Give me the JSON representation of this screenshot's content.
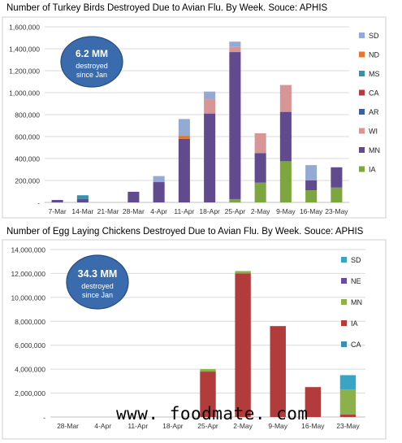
{
  "chart_data": [
    {
      "type": "bar",
      "stacked": true,
      "title": "Number of Turkey Birds Destroyed Due to Avian Flu.  By Week.  Souce: APHIS",
      "callout": [
        "6.2 MM",
        "destroyed",
        "since Jan"
      ],
      "categories": [
        "7-Mar",
        "14-Mar",
        "21-Mar",
        "28-Mar",
        "4-Apr",
        "11-Apr",
        "18-Apr",
        "25-Apr",
        "2-May",
        "9-May",
        "16-May",
        "23-May"
      ],
      "ylim": [
        0,
        1600000
      ],
      "yticks": [
        0,
        200000,
        400000,
        600000,
        800000,
        1000000,
        1200000,
        1400000,
        1600000
      ],
      "ytick_labels": [
        "-",
        "200,000",
        "400,000",
        "600,000",
        "800,000",
        "1,000,000",
        "1,200,000",
        "1,400,000",
        "1,600,000"
      ],
      "grid": true,
      "legend_position": "right",
      "series": [
        {
          "name": "IA",
          "color": "#7ea63f",
          "values": [
            0,
            0,
            0,
            0,
            0,
            0,
            0,
            30000,
            180000,
            375000,
            110000,
            135000
          ]
        },
        {
          "name": "MN",
          "color": "#614b8e",
          "values": [
            22000,
            30000,
            0,
            97000,
            185000,
            580000,
            810000,
            1340000,
            270000,
            450000,
            90000,
            185000
          ]
        },
        {
          "name": "WI",
          "color": "#d89595",
          "values": [
            0,
            0,
            0,
            0,
            0,
            0,
            130000,
            50000,
            180000,
            245000,
            0,
            0
          ]
        },
        {
          "name": "AR",
          "color": "#3a5f9c",
          "values": [
            0,
            0,
            0,
            0,
            0,
            0,
            0,
            0,
            0,
            0,
            0,
            0
          ]
        },
        {
          "name": "CA",
          "color": "#b23b3b",
          "values": [
            0,
            0,
            0,
            0,
            0,
            0,
            0,
            0,
            0,
            0,
            0,
            0
          ]
        },
        {
          "name": "MS",
          "color": "#3b8fb1",
          "values": [
            0,
            35000,
            0,
            0,
            0,
            0,
            0,
            0,
            0,
            0,
            0,
            0
          ]
        },
        {
          "name": "ND",
          "color": "#e8772e",
          "values": [
            0,
            0,
            0,
            0,
            0,
            30000,
            0,
            0,
            0,
            0,
            0,
            0
          ]
        },
        {
          "name": "SD",
          "color": "#93abd4",
          "values": [
            0,
            0,
            0,
            0,
            55000,
            150000,
            70000,
            45000,
            0,
            0,
            140000,
            0
          ]
        }
      ]
    },
    {
      "type": "bar",
      "stacked": true,
      "title": "Number of Egg Laying Chickens Destroyed Due to Avian Flu.  By Week.  Souce: APHIS",
      "callout": [
        "34.3 MM",
        "destroyed",
        "since Jan"
      ],
      "categories": [
        "28-Mar",
        "4-Apr",
        "11-Apr",
        "18-Apr",
        "25-Apr",
        "2-May",
        "9-May",
        "16-May",
        "23-May"
      ],
      "ylim": [
        0,
        14000000
      ],
      "yticks": [
        0,
        2000000,
        4000000,
        6000000,
        8000000,
        10000000,
        12000000,
        14000000
      ],
      "ytick_labels": [
        "-",
        "2,000,000",
        "4,000,000",
        "6,000,000",
        "8,000,000",
        "10,000,000",
        "12,000,000",
        "14,000,000"
      ],
      "grid": true,
      "legend_position": "right",
      "series": [
        {
          "name": "CA",
          "color": "#3b8fb1",
          "values": [
            0,
            0,
            0,
            0,
            0,
            0,
            0,
            0,
            0
          ]
        },
        {
          "name": "IA",
          "color": "#b23b3b",
          "values": [
            0,
            0,
            0,
            0,
            3800000,
            12000000,
            7600000,
            2500000,
            200000
          ]
        },
        {
          "name": "MN",
          "color": "#8db14a",
          "values": [
            0,
            0,
            0,
            0,
            200000,
            200000,
            0,
            0,
            2100000
          ]
        },
        {
          "name": "NE",
          "color": "#6b4c99",
          "values": [
            0,
            0,
            0,
            0,
            0,
            0,
            0,
            0,
            0
          ]
        },
        {
          "name": "SD",
          "color": "#39a4c6",
          "values": [
            0,
            0,
            0,
            0,
            0,
            0,
            0,
            0,
            1200000
          ]
        }
      ]
    }
  ],
  "watermark": "www. foodmate. com"
}
